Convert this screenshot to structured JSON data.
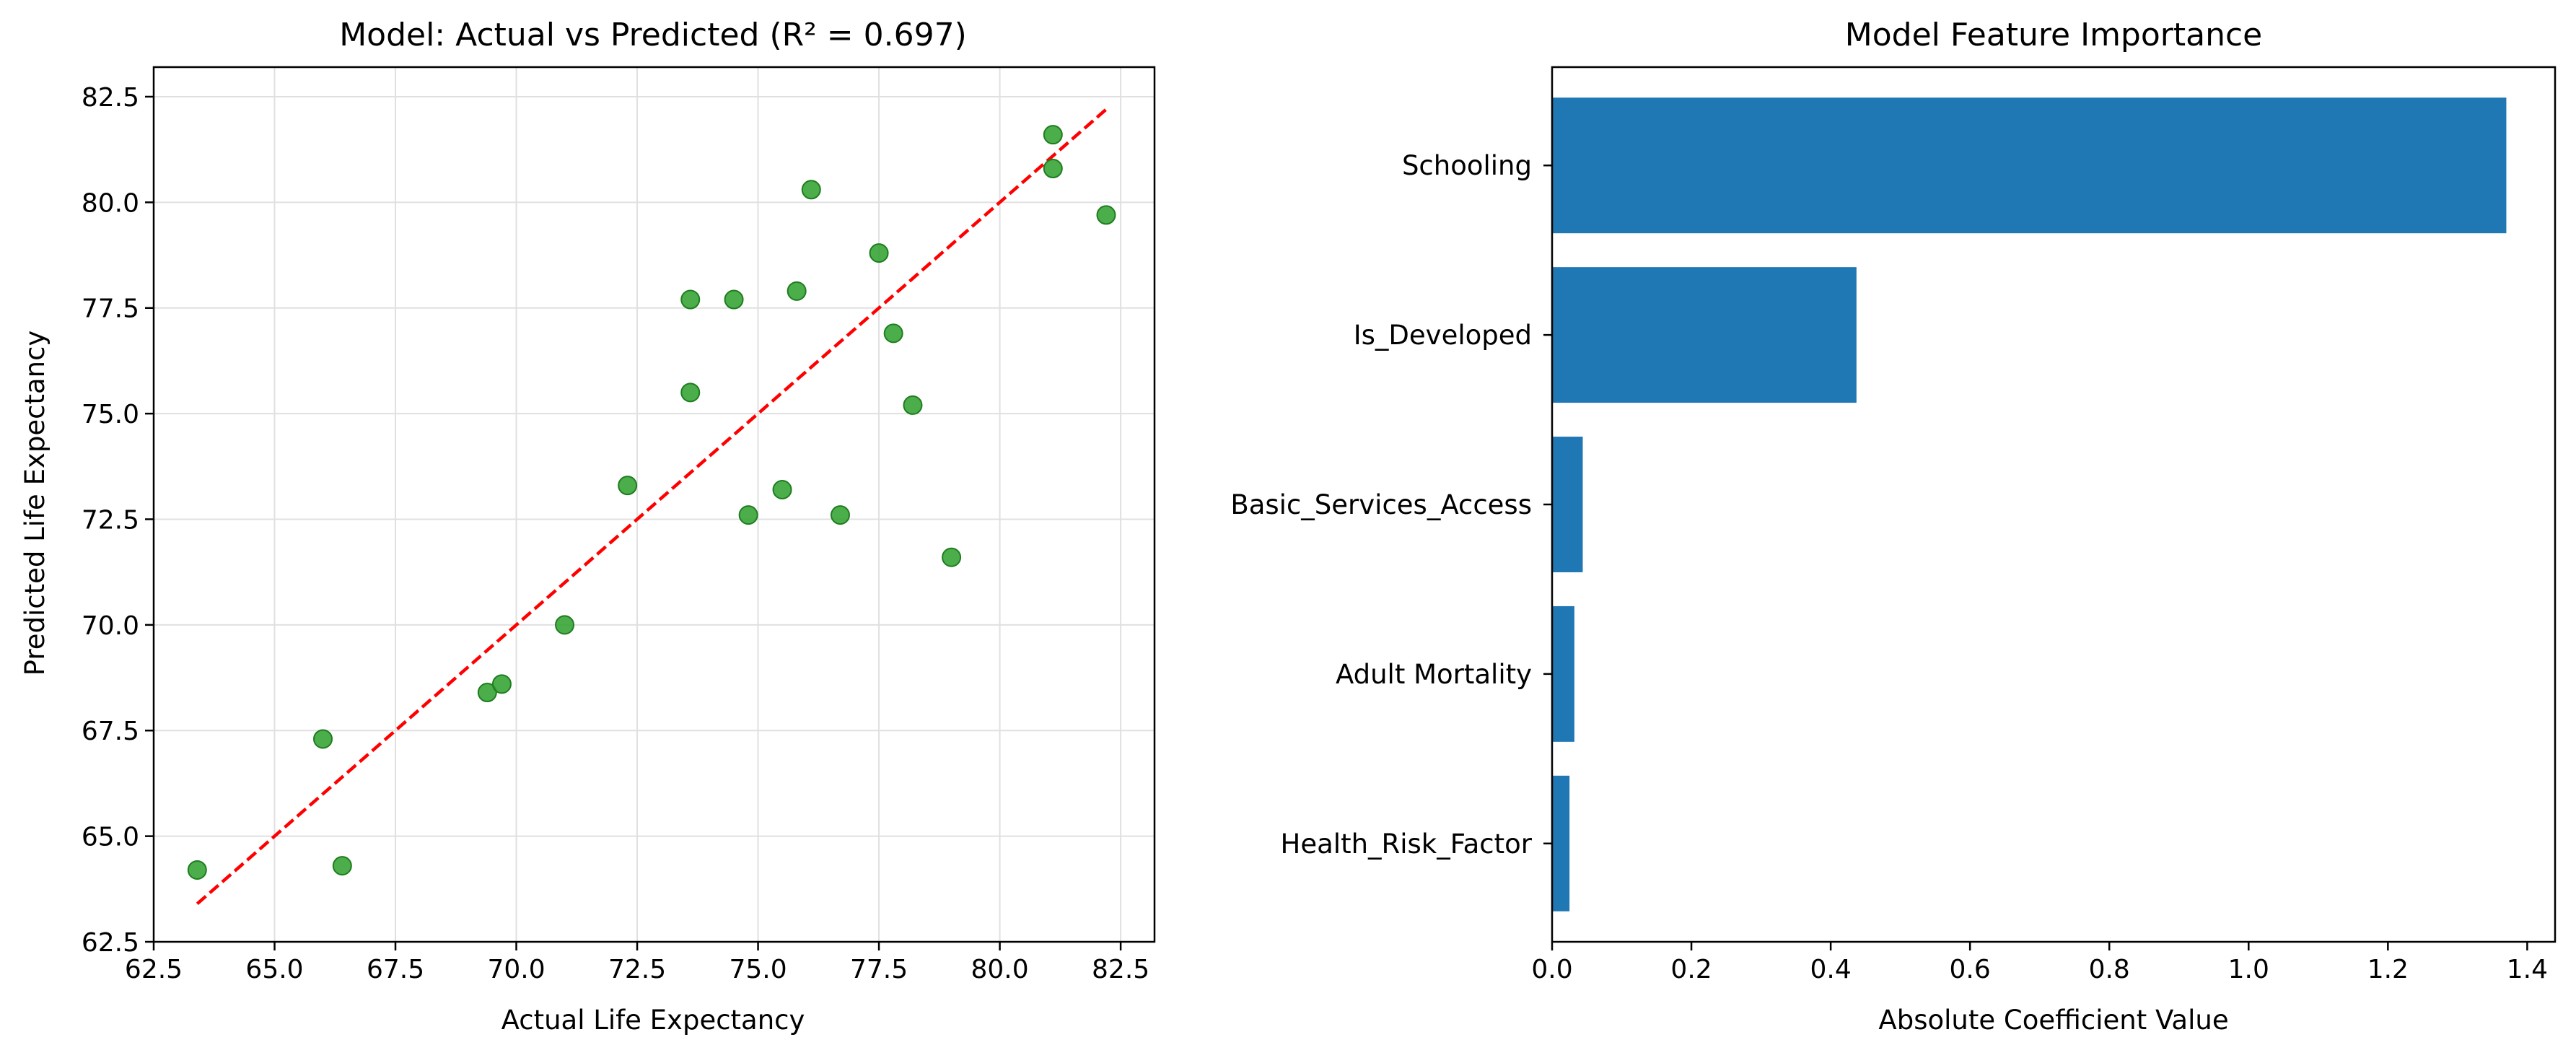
{
  "figure": {
    "background": "#ffffff"
  },
  "chart_data": [
    {
      "type": "scatter",
      "title": "Model: Actual vs Predicted (R² = 0.697)",
      "xlabel": "Actual Life Expectancy",
      "ylabel": "Predicted Life Expectancy",
      "xlim": [
        62.5,
        83.2
      ],
      "ylim": [
        62.5,
        83.2
      ],
      "xticks": [
        "62.5",
        "65.0",
        "67.5",
        "70.0",
        "72.5",
        "75.0",
        "77.5",
        "80.0",
        "82.5"
      ],
      "yticks": [
        "62.5",
        "65.0",
        "67.5",
        "70.0",
        "72.5",
        "75.0",
        "77.5",
        "80.0",
        "82.5"
      ],
      "grid": true,
      "point_color": "#2ca02c",
      "reference_line": {
        "x": [
          63.4,
          82.2
        ],
        "y": [
          63.4,
          82.2
        ],
        "color": "#ff0000",
        "style": "dashed"
      },
      "points": [
        {
          "x": 63.4,
          "y": 64.2
        },
        {
          "x": 66.0,
          "y": 67.3
        },
        {
          "x": 66.4,
          "y": 64.3
        },
        {
          "x": 69.4,
          "y": 68.4
        },
        {
          "x": 69.7,
          "y": 68.6
        },
        {
          "x": 71.0,
          "y": 70.0
        },
        {
          "x": 72.3,
          "y": 73.3
        },
        {
          "x": 73.6,
          "y": 77.7
        },
        {
          "x": 73.6,
          "y": 75.5
        },
        {
          "x": 74.5,
          "y": 77.7
        },
        {
          "x": 74.8,
          "y": 72.6
        },
        {
          "x": 75.5,
          "y": 73.2
        },
        {
          "x": 75.8,
          "y": 77.9
        },
        {
          "x": 76.1,
          "y": 80.3
        },
        {
          "x": 76.7,
          "y": 72.6
        },
        {
          "x": 77.5,
          "y": 78.8
        },
        {
          "x": 77.8,
          "y": 76.9
        },
        {
          "x": 78.2,
          "y": 75.2
        },
        {
          "x": 79.0,
          "y": 71.6
        },
        {
          "x": 81.1,
          "y": 81.6
        },
        {
          "x": 81.1,
          "y": 80.8
        },
        {
          "x": 82.2,
          "y": 79.7
        }
      ]
    },
    {
      "type": "bar",
      "orientation": "horizontal",
      "title": "Model Feature Importance",
      "xlabel": "Absolute Coefficient Value",
      "ylabel": "",
      "xlim": [
        0,
        1.44
      ],
      "xticks": [
        "0.0",
        "0.2",
        "0.4",
        "0.6",
        "0.8",
        "1.0",
        "1.2",
        "1.4"
      ],
      "bar_color": "#1f77b4",
      "categories": [
        "Schooling",
        "Is_Developed",
        "Basic_Services_Access",
        "Adult Mortality",
        "Health_Risk_Factor"
      ],
      "values": [
        1.37,
        0.437,
        0.044,
        0.032,
        0.025
      ]
    }
  ]
}
